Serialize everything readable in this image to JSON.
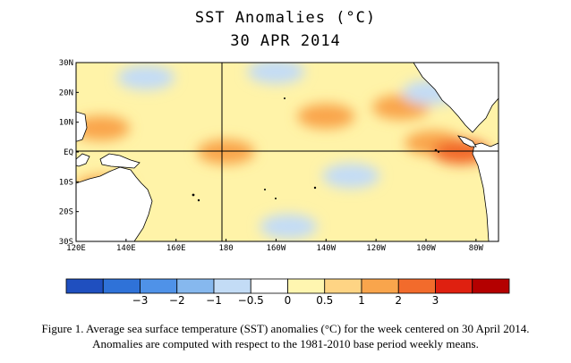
{
  "chart_data": {
    "type": "heatmap",
    "title": "SST Anomalies (°C)",
    "subtitle": "30 APR 2014",
    "x_ticks": [
      "120E",
      "140E",
      "160E",
      "180",
      "160W",
      "140W",
      "120W",
      "100W",
      "80W"
    ],
    "y_ticks": [
      "30N",
      "20N",
      "10N",
      "EQ",
      "10S",
      "20S",
      "30S"
    ],
    "colorbar": {
      "ticks": [
        "−3",
        "−2",
        "−1",
        "−0.5",
        "0",
        "0.5",
        "1",
        "2",
        "3"
      ],
      "colors": [
        "#1f4fbf",
        "#2f72d8",
        "#4f92e8",
        "#86b8ee",
        "#c3dcf6",
        "#ffffff",
        "#fff6b0",
        "#fed484",
        "#f9a54c",
        "#f26b2c",
        "#df2010",
        "#b40000"
      ]
    },
    "anomaly_regions": [
      {
        "lon": 130,
        "lat": 8,
        "anomaly": 1.2
      },
      {
        "lon": 131,
        "lat": -12,
        "anomaly": 1.3
      },
      {
        "lon": 180,
        "lat": 0,
        "anomaly": 1.5
      },
      {
        "lon": 220,
        "lat": 12,
        "anomaly": 1.0
      },
      {
        "lon": 250,
        "lat": 15,
        "anomaly": 1.6
      },
      {
        "lon": 263,
        "lat": 3,
        "anomaly": 1.5
      },
      {
        "lon": 274,
        "lat": 0,
        "anomaly": 2.2
      },
      {
        "lon": 277,
        "lat": 28,
        "anomaly": 1.4
      },
      {
        "lon": 148,
        "lat": 25,
        "anomaly": -0.6
      },
      {
        "lon": 230,
        "lat": -8,
        "anomaly": -0.7
      },
      {
        "lon": 205,
        "lat": -25,
        "anomaly": -0.8
      },
      {
        "lon": 262,
        "lat": 20,
        "anomaly": -1.0
      },
      {
        "lon": 200,
        "lat": 27,
        "anomaly": -0.6
      }
    ]
  },
  "caption": {
    "line1": "Figure 1. Average sea surface temperature (SST) anomalies (°C) for the week centered on 30 April 2014.",
    "line2": "Anomalies are computed with respect to the 1981-2010 base period weekly means."
  }
}
